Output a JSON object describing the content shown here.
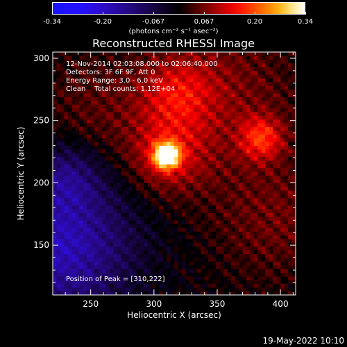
{
  "colorbar": {
    "tick_labels": [
      "-0.34",
      "-0.20",
      "-0.067",
      "0.067",
      "0.20",
      "0.34"
    ],
    "units_label": "(photons cm⁻² s⁻¹ asec⁻²)"
  },
  "title": "Reconstructed RHESSI Image",
  "annotations": {
    "time_range": "12-Nov-2014 02:03:08.000 to 02:06:40.000",
    "detectors": "Detectors: 3F 6F 9F, Att 0",
    "energy": "Energy Range: 3.0 - 6.0 keV",
    "method": "Clean    Total counts: 1.12E+04",
    "peak": "Position of Peak = [310,222]"
  },
  "footer_date": "19-May-2022 10:10",
  "chart_data": {
    "type": "heatmap",
    "title": "Reconstructed RHESSI Image",
    "xlabel": "Heliocentric X (arcsec)",
    "ylabel": "Heliocentric Y (arcsec)",
    "xlim": [
      220,
      412
    ],
    "ylim": [
      110,
      305
    ],
    "x_ticks": [
      250,
      300,
      350,
      400
    ],
    "y_ticks": [
      150,
      200,
      250,
      300
    ],
    "x_tick_labels": [
      "250",
      "300",
      "350",
      "400"
    ],
    "y_tick_labels": [
      "150",
      "200",
      "250",
      "300"
    ],
    "colorbar_range": [
      -0.34,
      0.34
    ],
    "colormap": "IDL red-temperature with blue/purple negatives",
    "peak": {
      "x": 310,
      "y": 222
    },
    "secondary_sources": [
      {
        "x": 385,
        "y": 236
      },
      {
        "x": 318,
        "y": 272
      }
    ]
  }
}
